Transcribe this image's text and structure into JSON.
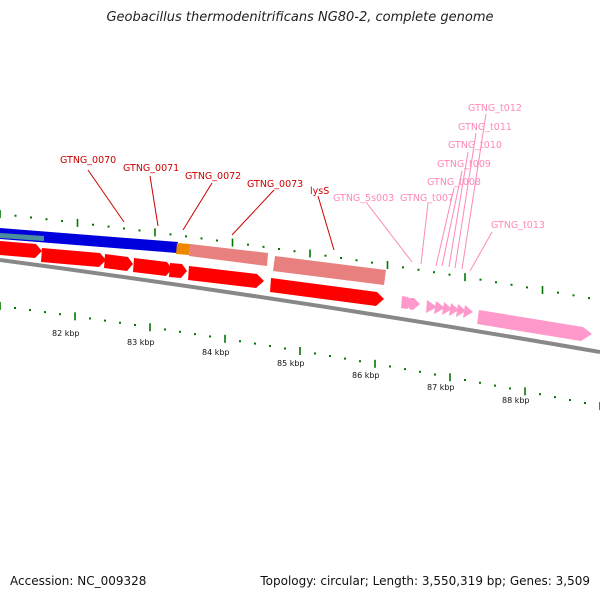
{
  "title": "Geobacillus thermodenitrificans NG80-2, complete genome",
  "accession": "Accession: NC_009328",
  "topology": "Topology: circular; Length: 3,550,319 bp; Genes: 3,509",
  "colors": {
    "cds": "#ff0000",
    "cds_light": "#e88080",
    "rna": "#ff99cc",
    "gene_blue": "#0000dd",
    "gene_orange": "#ee8800",
    "label_red": "#cc0000",
    "label_pink": "#ff88bb",
    "tick_green": "#007700",
    "backbone": "#888888"
  },
  "scale_labels": [
    "82 kbp",
    "83 kbp",
    "84 kbp",
    "85 kbp",
    "86 kbp",
    "87 kbp",
    "88 kbp"
  ],
  "gene_labels": [
    {
      "text": "GTNG_0070",
      "kind": "cds"
    },
    {
      "text": "GTNG_0071",
      "kind": "cds"
    },
    {
      "text": "GTNG_0072",
      "kind": "cds"
    },
    {
      "text": "GTNG_0073",
      "kind": "cds"
    },
    {
      "text": "lysS",
      "kind": "cds"
    },
    {
      "text": "GTNG_5s003",
      "kind": "rna"
    },
    {
      "text": "GTNG_t007",
      "kind": "rna"
    },
    {
      "text": "GTNG_t008",
      "kind": "rna"
    },
    {
      "text": "GTNG_t009",
      "kind": "rna"
    },
    {
      "text": "GTNG_t010",
      "kind": "rna"
    },
    {
      "text": "GTNG_t011",
      "kind": "rna"
    },
    {
      "text": "GTNG_t012",
      "kind": "rna"
    },
    {
      "text": "GTNG_t013",
      "kind": "rna"
    }
  ]
}
